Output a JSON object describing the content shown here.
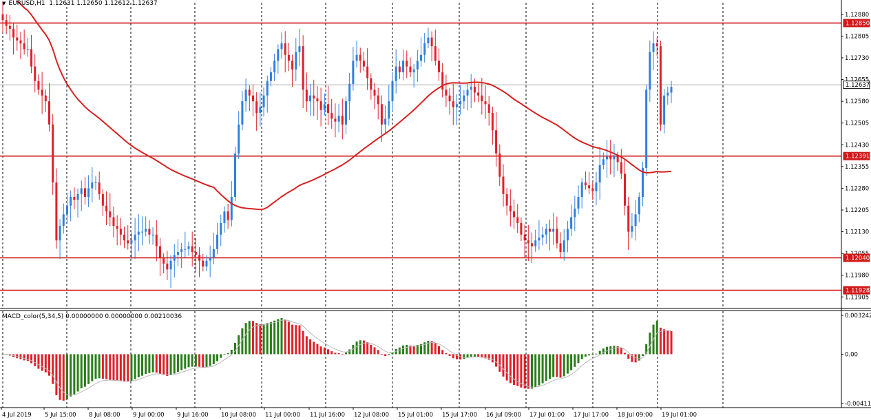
{
  "header": {
    "symbol": "EURUSD,H1",
    "ohlc": "1.12631 1.12650 1.12612 1.12637"
  },
  "macd_label": "MACD_color(5,34,5) 0.00000000 0.00000000 0.00210036",
  "price_axis": {
    "ticks": [
      "1.12880",
      "1.12805",
      "1.12730",
      "1.12655",
      "1.12580",
      "1.12505",
      "1.12430",
      "1.12355",
      "1.12280",
      "1.12205",
      "1.12130",
      "1.12055",
      "1.11980",
      "1.11905"
    ],
    "level_tags": [
      "1.12850",
      "1.12637",
      "1.12391",
      "1.12040",
      "1.11928"
    ]
  },
  "macd_axis": {
    "ticks": [
      "0.003242",
      "0.00",
      "-0.00411"
    ]
  },
  "time_axis": {
    "labels": [
      "4 Jul 2019",
      "5 Jul 15:00",
      "8 Jul 08:00",
      "9 Jul 00:00",
      "9 Jul 16:00",
      "10 Jul 08:00",
      "11 Jul 00:00",
      "11 Jul 16:00",
      "12 Jul 08:00",
      "15 Jul 01:00",
      "15 Jul 17:00",
      "16 Jul 09:00",
      "17 Jul 01:00",
      "17 Jul 17:00",
      "18 Jul 09:00",
      "19 Jul 01:00"
    ]
  },
  "colors": {
    "bull": "#2f7fe0",
    "bear": "#e0202a",
    "level": "#d01818",
    "ma": "#d82020",
    "macd_up": "#2a7d1a",
    "macd_down": "#e0202a"
  },
  "chart_data": {
    "type": "candlestick",
    "symbol": "EURUSD",
    "timeframe": "H1",
    "y_range": [
      1.1187,
      1.1292
    ],
    "horizontal_levels": [
      1.1285,
      1.12391,
      1.1204,
      1.11928
    ],
    "last_price": 1.12637,
    "close": [
      1.1286,
      1.1284,
      1.1283,
      1.128,
      1.1279,
      1.1278,
      1.1276,
      1.1276,
      1.127,
      1.1265,
      1.1262,
      1.126,
      1.1258,
      1.125,
      1.123,
      1.121,
      1.1215,
      1.1219,
      1.1222,
      1.1225,
      1.1224,
      1.1226,
      1.1228,
      1.1225,
      1.1228,
      1.123,
      1.123,
      1.1226,
      1.1222,
      1.122,
      1.1218,
      1.1215,
      1.1214,
      1.1212,
      1.121,
      1.1209,
      1.121,
      1.1212,
      1.1213,
      1.1213,
      1.1214,
      1.1212,
      1.1212,
      1.1208,
      1.1204,
      1.1202,
      1.12,
      1.1203,
      1.1205,
      1.1206,
      1.1207,
      1.1207,
      1.1208,
      1.1206,
      1.1205,
      1.1203,
      1.1201,
      1.1203,
      1.1204,
      1.1207,
      1.1212,
      1.1216,
      1.122,
      1.1217,
      1.1225,
      1.124,
      1.125,
      1.1258,
      1.1262,
      1.126,
      1.1258,
      1.1254,
      1.1256,
      1.126,
      1.1265,
      1.1268,
      1.1272,
      1.1276,
      1.1278,
      1.1274,
      1.1272,
      1.1269,
      1.1275,
      1.1277,
      1.1262,
      1.1258,
      1.126,
      1.1259,
      1.1258,
      1.1255,
      1.1257,
      1.1254,
      1.1252,
      1.1251,
      1.1253,
      1.125,
      1.1258,
      1.1264,
      1.1272,
      1.1274,
      1.1272,
      1.127,
      1.1266,
      1.1262,
      1.126,
      1.1257,
      1.125,
      1.1252,
      1.1258,
      1.1265,
      1.127,
      1.1268,
      1.1272,
      1.127,
      1.1268,
      1.1269,
      1.1272,
      1.1274,
      1.1278,
      1.128,
      1.1277,
      1.1272,
      1.1268,
      1.1262,
      1.126,
      1.1258,
      1.1256,
      1.1257,
      1.1258,
      1.126,
      1.1262,
      1.1263,
      1.1261,
      1.126,
      1.1258,
      1.1257,
      1.1254,
      1.1248,
      1.124,
      1.1232,
      1.1226,
      1.1222,
      1.122,
      1.1218,
      1.1216,
      1.1212,
      1.121,
      1.1209,
      1.1208,
      1.121,
      1.1211,
      1.1212,
      1.1214,
      1.1213,
      1.1214,
      1.1209,
      1.1206,
      1.121,
      1.1214,
      1.1218,
      1.1221,
      1.1225,
      1.123,
      1.1229,
      1.1228,
      1.1227,
      1.123,
      1.1236,
      1.1238,
      1.1239,
      1.1238,
      1.1239,
      1.1237,
      1.1233,
      1.1222,
      1.1213,
      1.1215,
      1.1219,
      1.1225,
      1.1235,
      1.1262,
      1.1275,
      1.1278,
      1.1277,
      1.125,
      1.126,
      1.1261,
      1.1263
    ],
    "macd_histogram_range": [
      -0.00411,
      0.003242
    ],
    "macd_last": 0.00210036
  }
}
